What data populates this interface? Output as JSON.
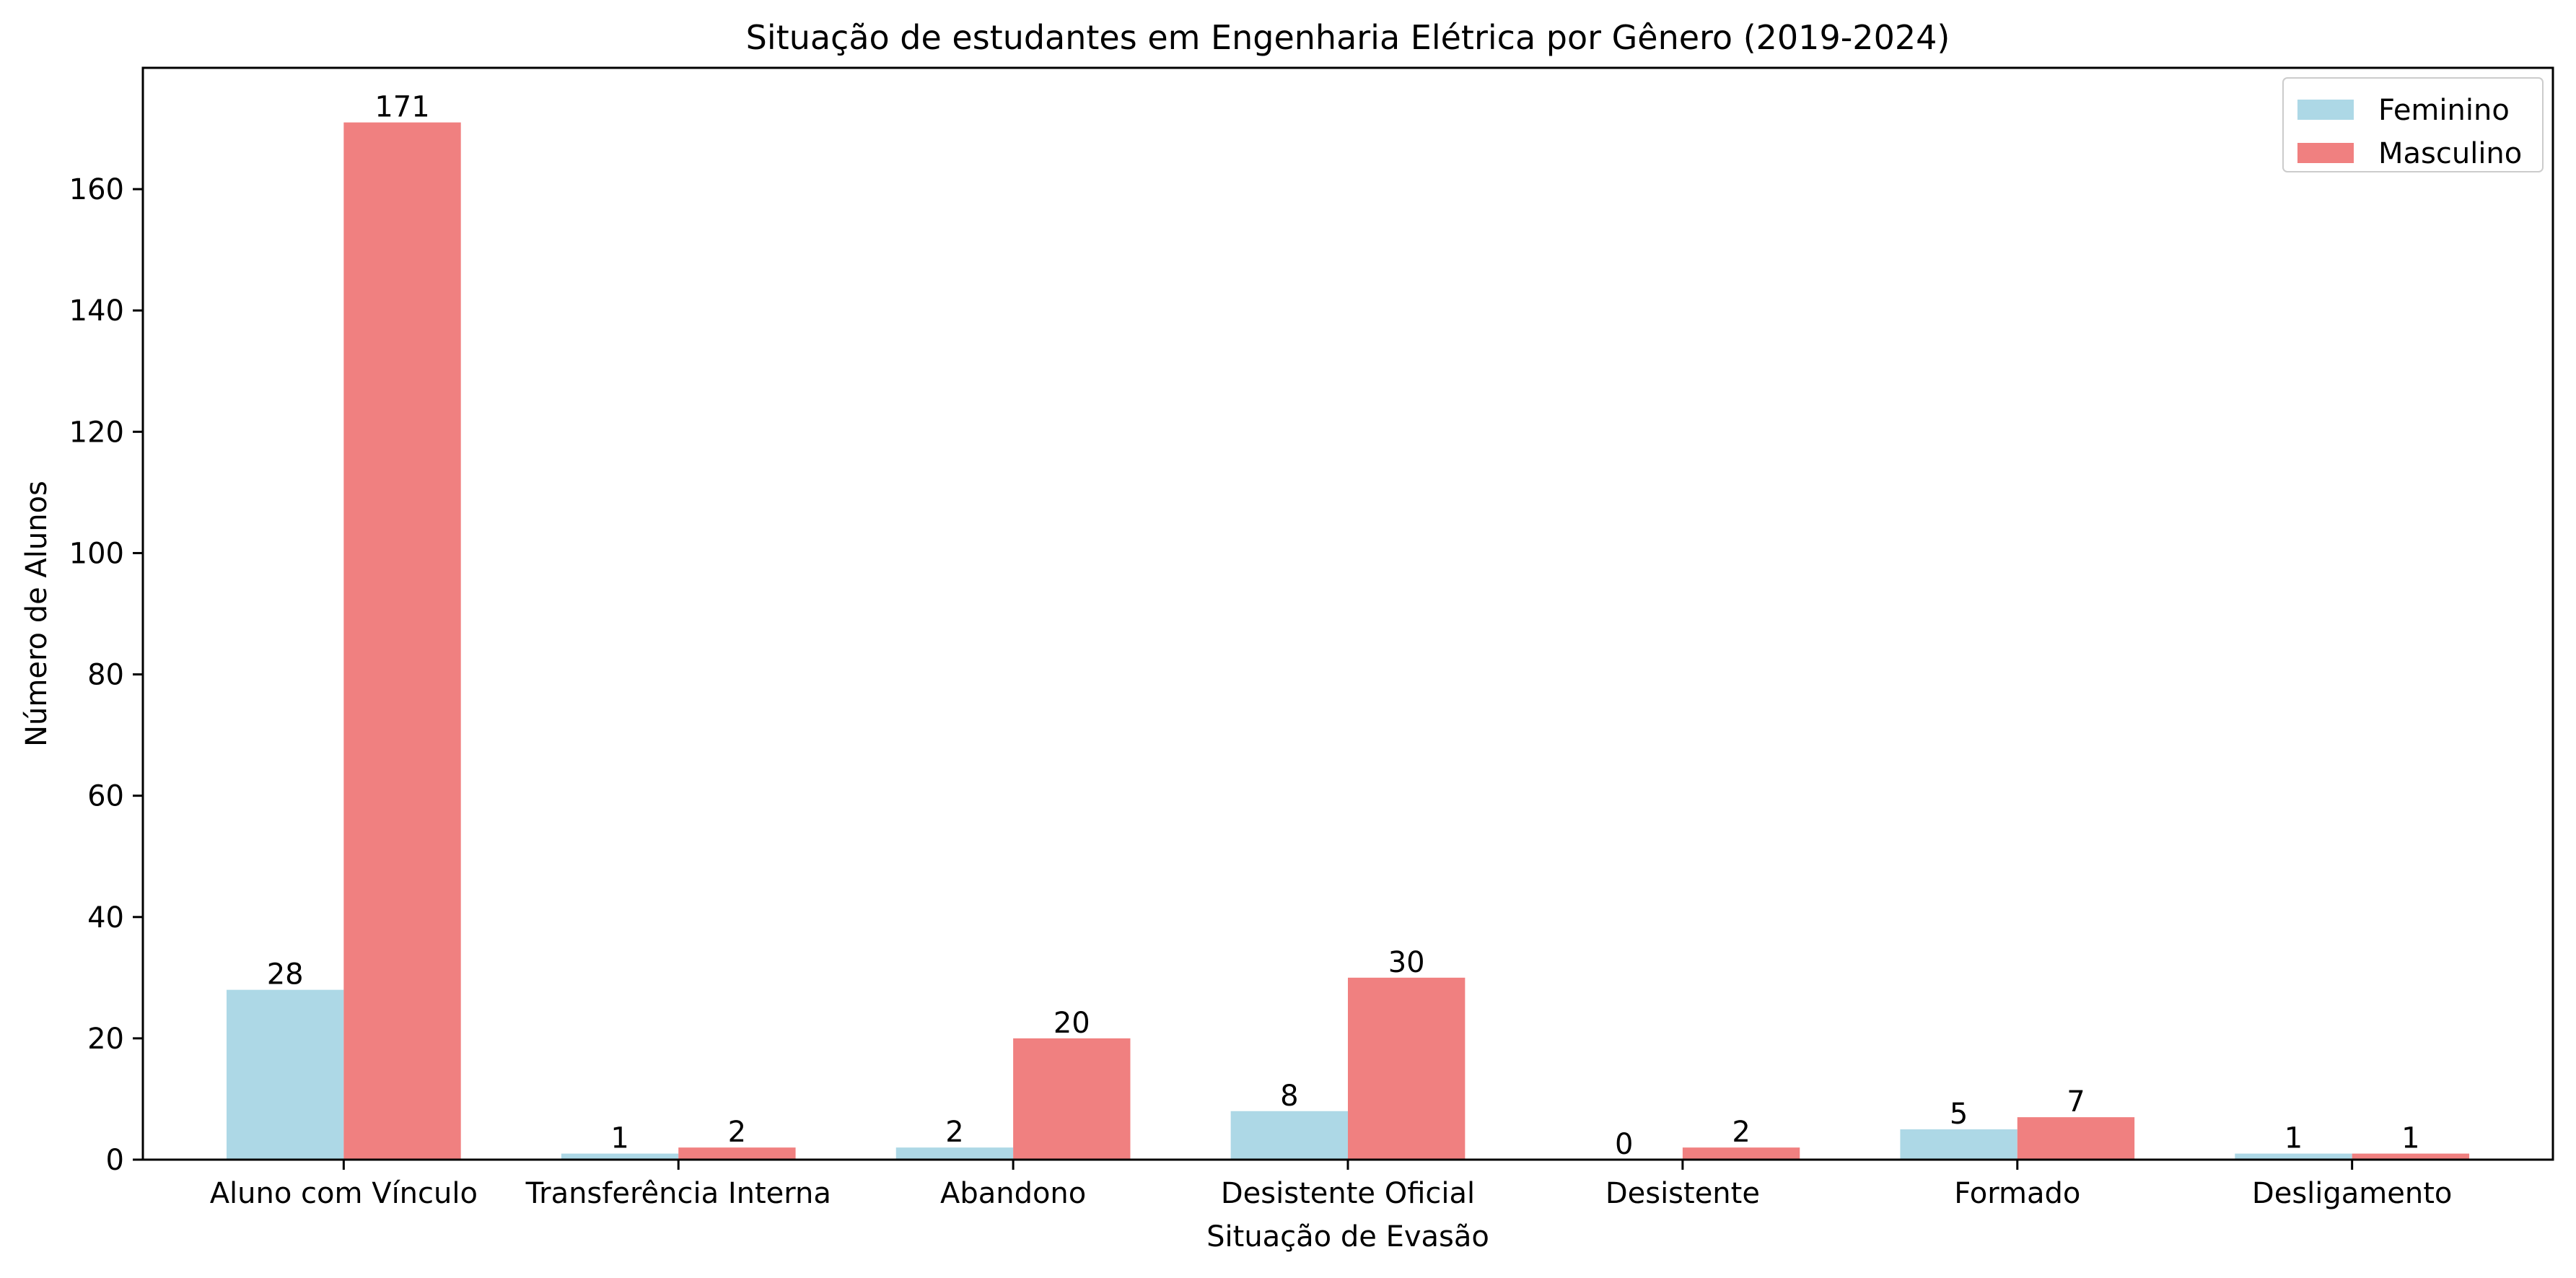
{
  "chart_data": {
    "type": "bar",
    "title": "Situação de estudantes em Engenharia Elétrica por Gênero (2019-2024)",
    "xlabel": "Situação de Evasão",
    "ylabel": "Número de Alunos",
    "categories": [
      "Aluno com Vínculo",
      "Transferência Interna",
      "Abandono",
      "Desistente Oficial",
      "Desistente",
      "Formado",
      "Desligamento"
    ],
    "series": [
      {
        "name": "Feminino",
        "color": "#add8e6",
        "values": [
          28,
          1,
          2,
          8,
          0,
          5,
          1
        ]
      },
      {
        "name": "Masculino",
        "color": "#f08080",
        "values": [
          171,
          2,
          20,
          30,
          2,
          7,
          1
        ]
      }
    ],
    "ylim": [
      0,
      180
    ],
    "yticks": [
      0,
      20,
      40,
      60,
      80,
      100,
      120,
      140,
      160
    ],
    "grid": false,
    "legend_position": "top-right",
    "data_labels": true
  }
}
